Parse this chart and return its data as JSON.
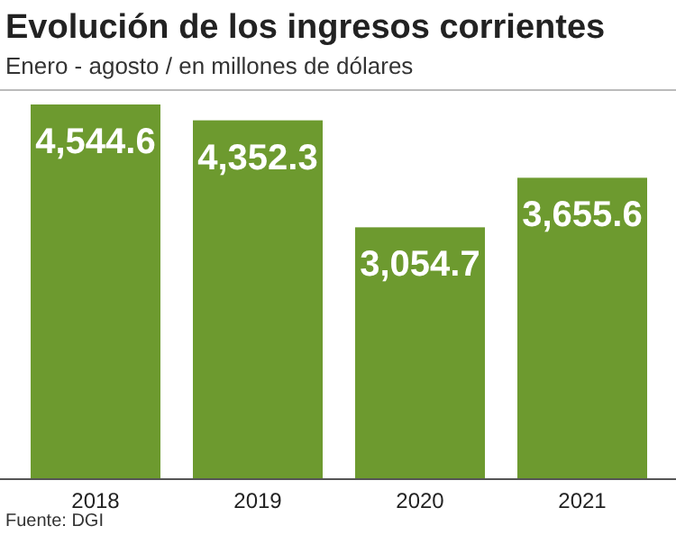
{
  "chart_data": {
    "type": "bar",
    "title": "Evolución de los ingresos corrientes",
    "subtitle": "Enero - agosto / en millones de dólares",
    "categories": [
      "2018",
      "2019",
      "2020",
      "2021"
    ],
    "values": [
      4544.6,
      4352.3,
      3054.7,
      3655.6
    ],
    "value_labels": [
      "4,544.6",
      "4,352.3",
      "3,054.7",
      "3,655.6"
    ],
    "color": "#6d9a2f",
    "annotations": [
      "Fuente: DGI"
    ]
  }
}
